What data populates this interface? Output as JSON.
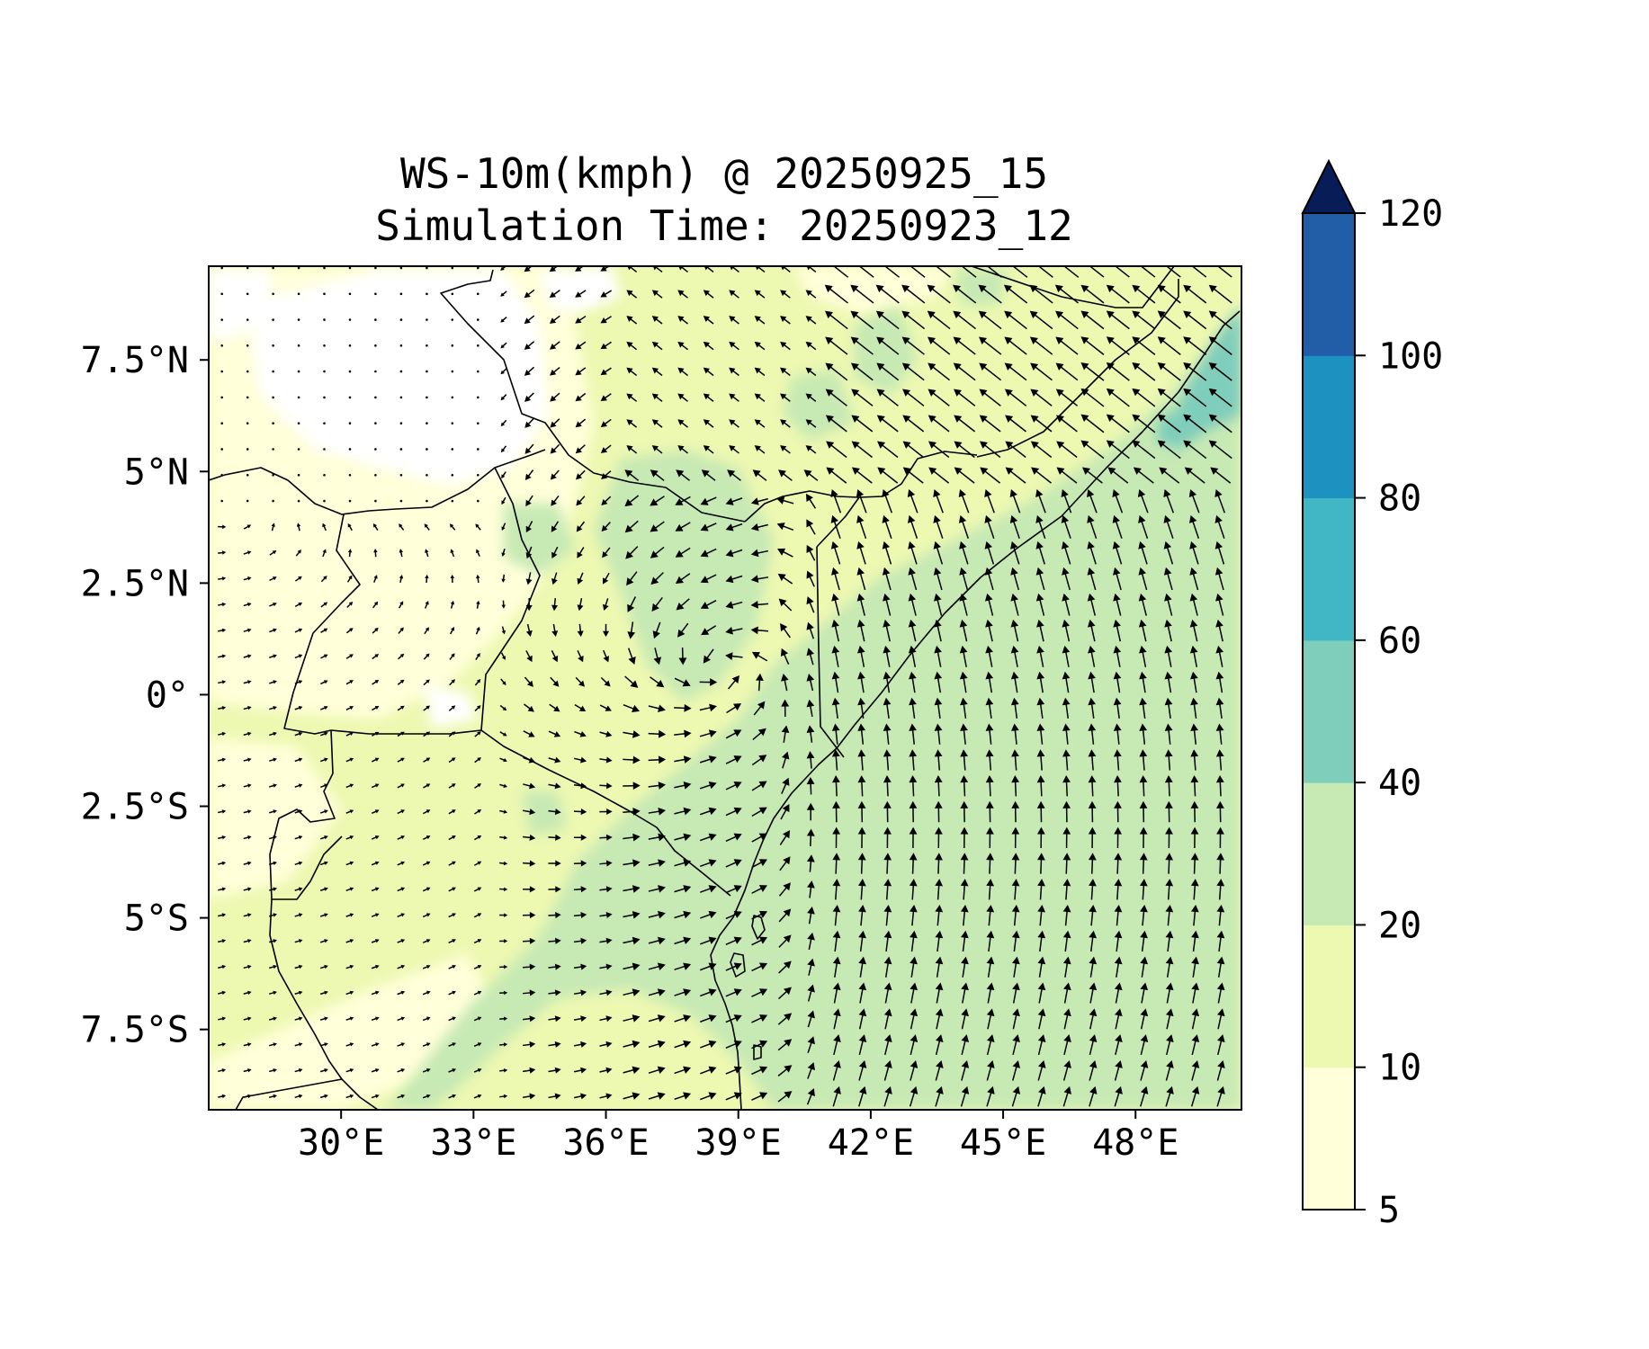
{
  "title": {
    "line1": "WS-10m(kmph) @ 20250925_15",
    "line2": "Simulation Time: 20250923_12"
  },
  "chart_data": {
    "type": "heatmap",
    "variable": "WS-10m(kmph)",
    "valid_time": "20250925_15",
    "simulation_time": "20250923_12",
    "lon_range": [
      27,
      50.4
    ],
    "lat_range": [
      -9.3,
      9.6
    ],
    "xticks": [
      {
        "value": 30,
        "label": "30°E"
      },
      {
        "value": 33,
        "label": "33°E"
      },
      {
        "value": 36,
        "label": "36°E"
      },
      {
        "value": 39,
        "label": "39°E"
      },
      {
        "value": 42,
        "label": "42°E"
      },
      {
        "value": 45,
        "label": "45°E"
      },
      {
        "value": 48,
        "label": "48°E"
      }
    ],
    "yticks": [
      {
        "value": 7.5,
        "label": "7.5°N"
      },
      {
        "value": 5,
        "label": "5°N"
      },
      {
        "value": 2.5,
        "label": "2.5°N"
      },
      {
        "value": 0,
        "label": "0°"
      },
      {
        "value": -2.5,
        "label": "2.5°S"
      },
      {
        "value": -5,
        "label": "5°S"
      },
      {
        "value": -7.5,
        "label": "7.5°S"
      }
    ],
    "colorbar": {
      "levels": [
        5,
        10,
        20,
        40,
        60,
        80,
        100,
        120
      ],
      "labels": [
        "5",
        "10",
        "20",
        "40",
        "60",
        "80",
        "100",
        "120"
      ],
      "colors": [
        "#ffffd9",
        "#edf8b1",
        "#c7e9b4",
        "#7fcdbb",
        "#41b6c4",
        "#1d91c0",
        "#225ea8",
        "#253494"
      ],
      "extend_color": "#081d58",
      "extend": "max"
    },
    "field_colors": {
      "lt5": "#ffffff",
      "5-10": "#ffffd9",
      "10-20": "#edf8b1",
      "20-40": "#c7e9b4",
      "40-60": "#7fcdbb"
    },
    "vectors": "10 m wind direction arrows on a regular lon/lat grid"
  }
}
